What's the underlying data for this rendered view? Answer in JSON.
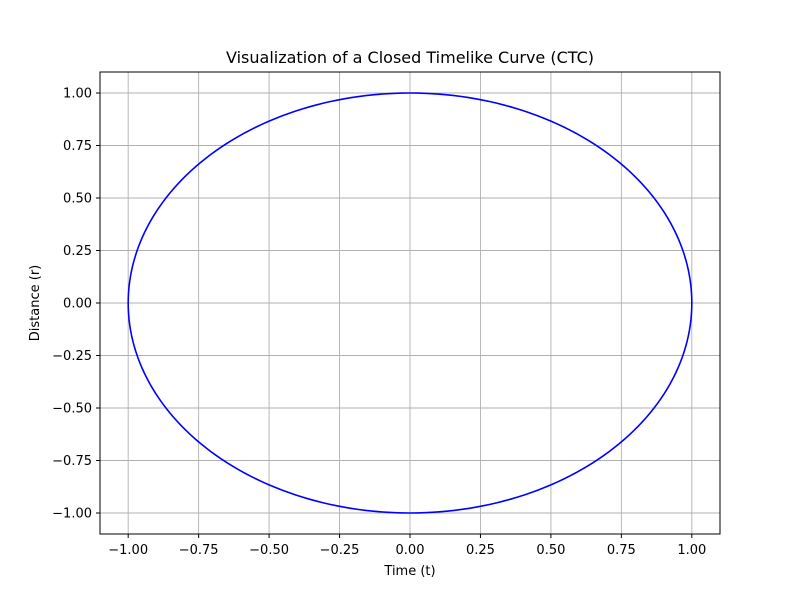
{
  "chart_data": {
    "type": "line",
    "title": "Visualization of a Closed Timelike Curve (CTC)",
    "xlabel": "Time (t)",
    "ylabel": "Distance (r)",
    "xlim": [
      -1.1,
      1.1
    ],
    "ylim": [
      -1.1,
      1.1
    ],
    "grid": true,
    "legend": "none",
    "xticks": [
      -1.0,
      -0.75,
      -0.5,
      -0.25,
      0.0,
      0.25,
      0.5,
      0.75,
      1.0
    ],
    "xtick_labels": [
      "−1.00",
      "−0.75",
      "−0.50",
      "−0.25",
      "0.00",
      "0.25",
      "0.50",
      "0.75",
      "1.00"
    ],
    "yticks": [
      1.0,
      0.75,
      0.5,
      0.25,
      0.0,
      -0.25,
      -0.5,
      -0.75,
      -1.0
    ],
    "ytick_labels": [
      "1.00",
      "0.75",
      "0.50",
      "0.25",
      "0.00",
      "−0.25",
      "−0.50",
      "−0.75",
      "−1.00"
    ],
    "series": [
      {
        "shape": "unit circle: t = cos(θ), r = sin(θ), θ from 0 to 2π",
        "color": "#0000ff",
        "x": [
          1.0,
          0.966,
          0.866,
          0.707,
          0.5,
          0.259,
          0.0,
          -0.259,
          -0.5,
          -0.707,
          -0.866,
          -0.966,
          -1.0,
          -0.966,
          -0.866,
          -0.707,
          -0.5,
          -0.259,
          0.0,
          0.259,
          0.5,
          0.707,
          0.866,
          0.966,
          1.0
        ],
        "y": [
          0.0,
          0.259,
          0.5,
          0.707,
          0.866,
          0.966,
          1.0,
          0.966,
          0.866,
          0.707,
          0.5,
          0.259,
          0.0,
          -0.259,
          -0.5,
          -0.707,
          -0.866,
          -0.966,
          -1.0,
          -0.966,
          -0.866,
          -0.707,
          -0.5,
          -0.259,
          0.0
        ]
      }
    ],
    "colors": {
      "grid": "#b0b0b0",
      "axes": "#000000"
    }
  }
}
